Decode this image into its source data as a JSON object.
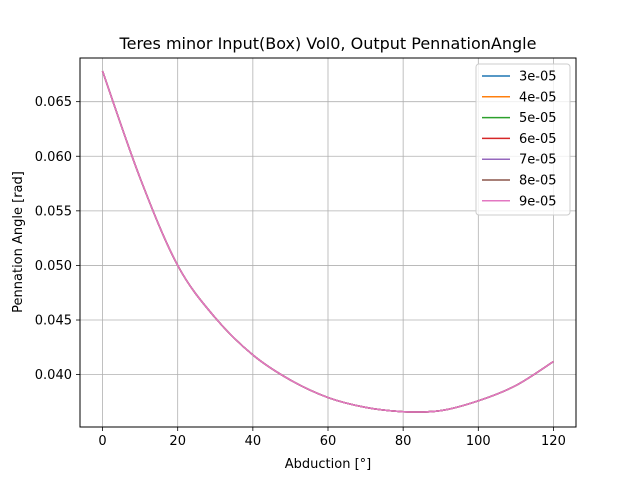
{
  "chart_data": {
    "type": "line",
    "title": "Teres minor Input(Box) Vol0, Output PennationAngle",
    "xlabel": "Abduction [°]",
    "ylabel": "Pennation Angle [rad]",
    "xlim": [
      -6,
      126
    ],
    "ylim": [
      0.0352,
      0.069
    ],
    "xticks": [
      0,
      20,
      40,
      60,
      80,
      100,
      120
    ],
    "yticks": [
      0.04,
      0.045,
      0.05,
      0.055,
      0.06,
      0.065
    ],
    "ytick_labels": [
      "0.040",
      "0.045",
      "0.050",
      "0.055",
      "0.060",
      "0.065"
    ],
    "grid": true,
    "legend_position": "top-right",
    "x": [
      0,
      10,
      20,
      30,
      40,
      50,
      60,
      70,
      80,
      90,
      100,
      110,
      120
    ],
    "series": [
      {
        "name": "3e-05",
        "color": "#1f77b4",
        "values": [
          0.0678,
          0.058,
          0.05,
          0.0452,
          0.0418,
          0.0395,
          0.0379,
          0.037,
          0.0366,
          0.0367,
          0.0376,
          0.039,
          0.0412
        ]
      },
      {
        "name": "4e-05",
        "color": "#ff7f0e",
        "values": [
          0.0678,
          0.058,
          0.05,
          0.0452,
          0.0418,
          0.0395,
          0.0379,
          0.037,
          0.0366,
          0.0367,
          0.0376,
          0.039,
          0.0412
        ]
      },
      {
        "name": "5e-05",
        "color": "#2ca02c",
        "values": [
          0.0678,
          0.058,
          0.05,
          0.0452,
          0.0418,
          0.0395,
          0.0379,
          0.037,
          0.0366,
          0.0367,
          0.0376,
          0.039,
          0.0412
        ]
      },
      {
        "name": "6e-05",
        "color": "#d62728",
        "values": [
          0.0678,
          0.058,
          0.05,
          0.0452,
          0.0418,
          0.0395,
          0.0379,
          0.037,
          0.0366,
          0.0367,
          0.0376,
          0.039,
          0.0412
        ]
      },
      {
        "name": "7e-05",
        "color": "#9467bd",
        "values": [
          0.0678,
          0.058,
          0.05,
          0.0452,
          0.0418,
          0.0395,
          0.0379,
          0.037,
          0.0366,
          0.0367,
          0.0376,
          0.039,
          0.0412
        ]
      },
      {
        "name": "8e-05",
        "color": "#8c564b",
        "values": [
          0.0678,
          0.058,
          0.05,
          0.0452,
          0.0418,
          0.0395,
          0.0379,
          0.037,
          0.0366,
          0.0367,
          0.0376,
          0.039,
          0.0412
        ]
      },
      {
        "name": "9e-05",
        "color": "#e377c2",
        "values": [
          0.0678,
          0.058,
          0.05,
          0.0452,
          0.0418,
          0.0395,
          0.0379,
          0.037,
          0.0366,
          0.0367,
          0.0376,
          0.039,
          0.0412
        ]
      }
    ]
  }
}
